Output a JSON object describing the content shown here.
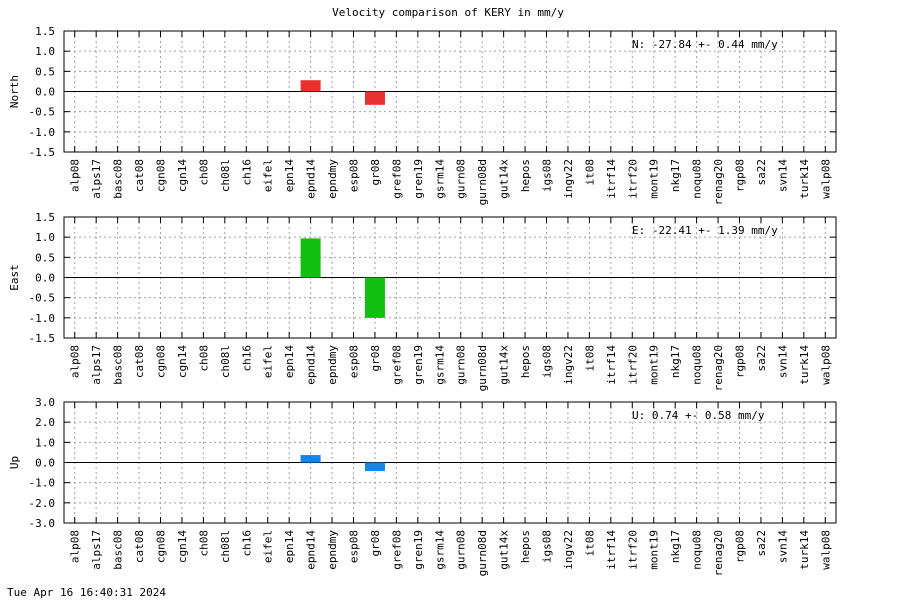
{
  "title": "Velocity comparison of KERY in mm/y",
  "timestamp": "Tue Apr 16 16:40:31 2024",
  "chart_data": [
    {
      "type": "bar",
      "ylabel": "North",
      "annotation": "N: -27.84 +-  0.44 mm/y",
      "ylim": [
        -1.5,
        1.5
      ],
      "yticks": [
        "1.5",
        "1.0",
        "0.5",
        "0.0",
        "-0.5",
        "-1.0",
        "-1.5"
      ],
      "color": "#e8302e",
      "categories": [
        "alp08",
        "alps17",
        "basc08",
        "cat08",
        "cgn08",
        "cgn14",
        "ch08",
        "ch08l",
        "ch16",
        "eifel",
        "epn14",
        "epnd14",
        "epndmy",
        "esp08",
        "gr08",
        "gref08",
        "gren19",
        "gsrm14",
        "gurn08",
        "gurn08d",
        "gut14x",
        "hepos",
        "igs08",
        "ingv22",
        "it08",
        "itrf14",
        "itrf20",
        "mont19",
        "nkg17",
        "noqu08",
        "renag20",
        "rgp08",
        "sa22",
        "svn14",
        "turk14",
        "walp08"
      ],
      "values": [
        0,
        0,
        0,
        0,
        0,
        0,
        0,
        0,
        0,
        0,
        0,
        0.28,
        0,
        0,
        -0.33,
        0,
        0,
        0,
        0,
        0,
        0,
        0,
        0,
        0,
        0,
        0,
        0,
        0,
        0,
        0,
        0,
        0,
        0,
        0,
        0,
        0
      ],
      "grid": true
    },
    {
      "type": "bar",
      "ylabel": "East",
      "annotation": "E: -22.41 +-  1.39 mm/y",
      "ylim": [
        -1.5,
        1.5
      ],
      "yticks": [
        "1.5",
        "1.0",
        "0.5",
        "0.0",
        "-0.5",
        "-1.0",
        "-1.5"
      ],
      "color": "#12c012",
      "categories": [
        "alp08",
        "alps17",
        "basc08",
        "cat08",
        "cgn08",
        "cgn14",
        "ch08",
        "ch08l",
        "ch16",
        "eifel",
        "epn14",
        "epnd14",
        "epndmy",
        "esp08",
        "gr08",
        "gref08",
        "gren19",
        "gsrm14",
        "gurn08",
        "gurn08d",
        "gut14x",
        "hepos",
        "igs08",
        "ingv22",
        "it08",
        "itrf14",
        "itrf20",
        "mont19",
        "nkg17",
        "noqu08",
        "renag20",
        "rgp08",
        "sa22",
        "svn14",
        "turk14",
        "walp08"
      ],
      "values": [
        0,
        0,
        0,
        0,
        0,
        0,
        0,
        0,
        0,
        0,
        0,
        0.97,
        0,
        0,
        -1.0,
        0,
        0,
        0,
        0,
        0,
        0,
        0,
        0,
        0,
        0,
        0,
        0,
        0,
        0,
        0,
        0,
        0,
        0,
        0,
        0,
        0
      ],
      "grid": true
    },
    {
      "type": "bar",
      "ylabel": "Up",
      "annotation": "U:   0.74 +-  0.58 mm/y",
      "ylim": [
        -3.0,
        3.0
      ],
      "yticks": [
        "3.0",
        "2.0",
        "1.0",
        "0.0",
        "-1.0",
        "-2.0",
        "-3.0"
      ],
      "color": "#1285ee",
      "categories": [
        "alp08",
        "alps17",
        "basc08",
        "cat08",
        "cgn08",
        "cgn14",
        "ch08",
        "ch08l",
        "ch16",
        "eifel",
        "epn14",
        "epnd14",
        "epndmy",
        "esp08",
        "gr08",
        "gref08",
        "gren19",
        "gsrm14",
        "gurn08",
        "gurn08d",
        "gut14x",
        "hepos",
        "igs08",
        "ingv22",
        "it08",
        "itrf14",
        "itrf20",
        "mont19",
        "nkg17",
        "noqu08",
        "renag20",
        "rgp08",
        "sa22",
        "svn14",
        "turk14",
        "walp08"
      ],
      "values": [
        0,
        0,
        0,
        0,
        0,
        0,
        0,
        0,
        0,
        0,
        0,
        0.37,
        0,
        0,
        -0.42,
        0,
        0,
        0,
        0,
        0,
        0,
        0,
        0,
        0,
        0,
        0,
        0,
        0,
        0,
        0,
        0,
        0,
        0,
        0,
        0,
        0
      ],
      "grid": true
    }
  ]
}
